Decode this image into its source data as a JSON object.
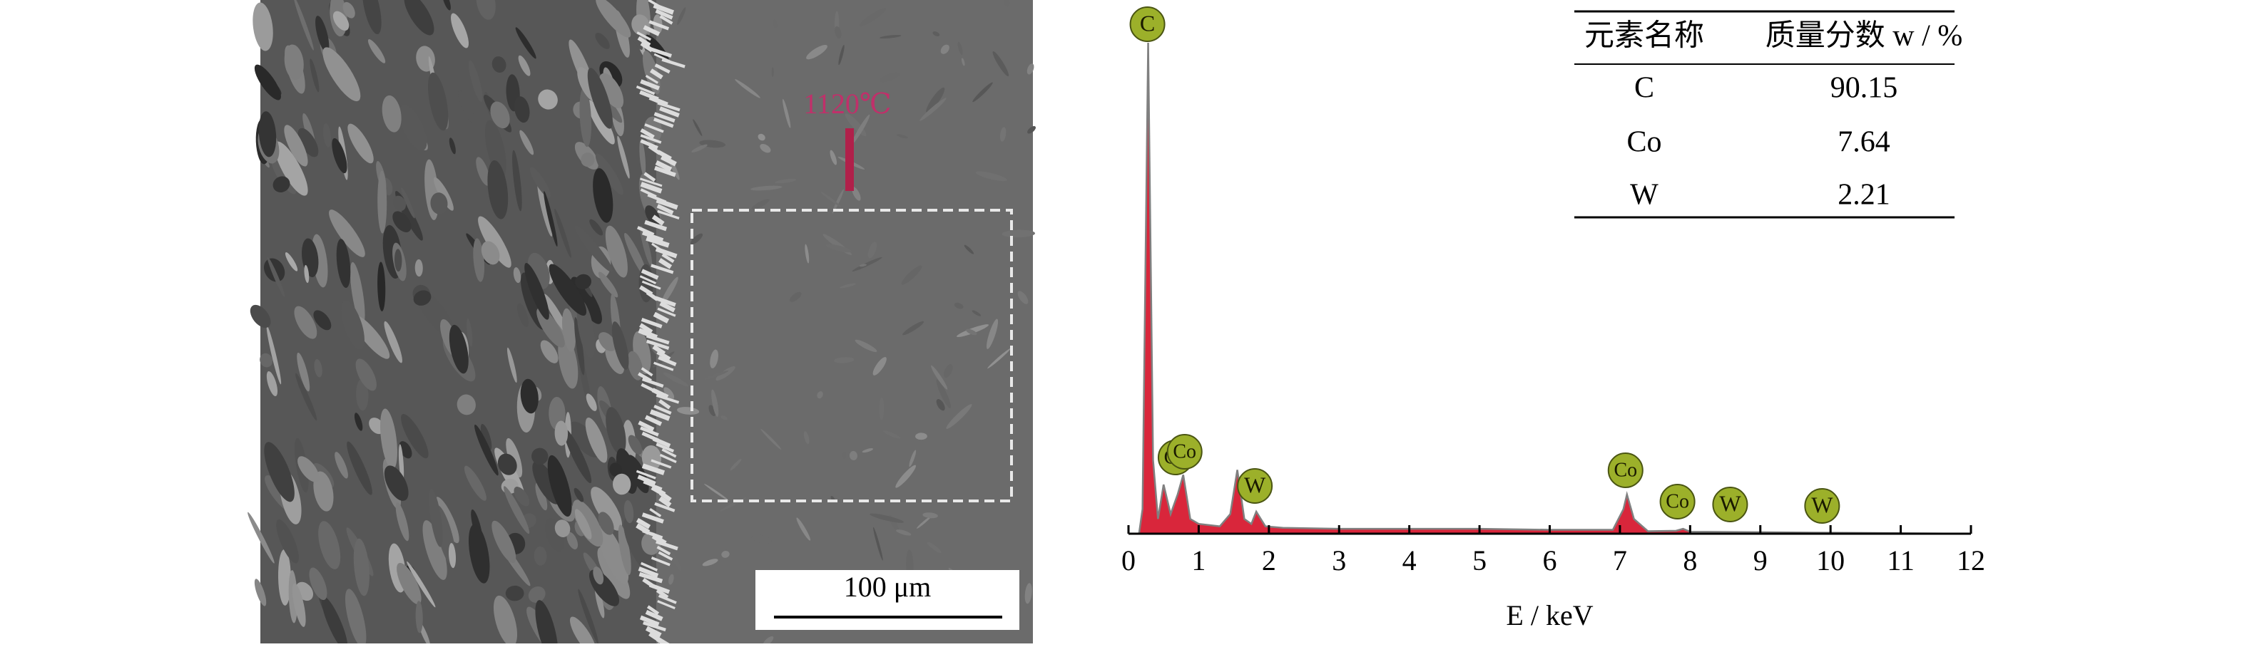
{
  "chart_data": {
    "type": "area",
    "xlabel": "E / keV",
    "x": [
      0,
      0.15,
      0.2,
      0.28,
      0.35,
      0.42,
      0.5,
      0.6,
      0.7,
      0.78,
      0.88,
      1.0,
      1.3,
      1.45,
      1.55,
      1.65,
      1.75,
      1.82,
      1.95,
      2.2,
      3,
      4,
      5,
      6,
      6.9,
      7.05,
      7.1,
      7.2,
      7.4,
      7.8,
      7.9,
      8.0,
      9,
      10,
      11,
      12
    ],
    "values": [
      0,
      0,
      5,
      100,
      15,
      3,
      10,
      4,
      8,
      12,
      3,
      2,
      1.5,
      4,
      13,
      3,
      2,
      4.5,
      1.5,
      1.2,
      1,
      1,
      1,
      0.8,
      0.8,
      5,
      8,
      3,
      0.5,
      0.6,
      1,
      0.4,
      0.3,
      0.2,
      0.1,
      0
    ],
    "color": "#d9263b",
    "xlim": [
      0,
      12
    ],
    "xticks": [
      0,
      1,
      2,
      3,
      4,
      5,
      6,
      7,
      8,
      9,
      10,
      11,
      12
    ],
    "ylim": [
      0,
      100
    ],
    "peak_labels": [
      {
        "text": "C",
        "x": 0.27
      },
      {
        "text": "Co",
        "x": 0.67
      },
      {
        "text": "Co",
        "x": 0.8
      },
      {
        "text": "W",
        "x": 1.8
      },
      {
        "text": "Co",
        "x": 7.08
      },
      {
        "text": "Co",
        "x": 7.82
      },
      {
        "text": "W",
        "x": 8.57
      },
      {
        "text": "W",
        "x": 9.88
      }
    ]
  },
  "table": {
    "header": [
      "元素名称",
      "质量分数 w / %"
    ],
    "rows": [
      [
        "C",
        "90.15"
      ],
      [
        "Co",
        "7.64"
      ],
      [
        "W",
        "2.21"
      ]
    ]
  },
  "image": {
    "marker_label": "1120℃",
    "scale_bar": "100 μm"
  }
}
